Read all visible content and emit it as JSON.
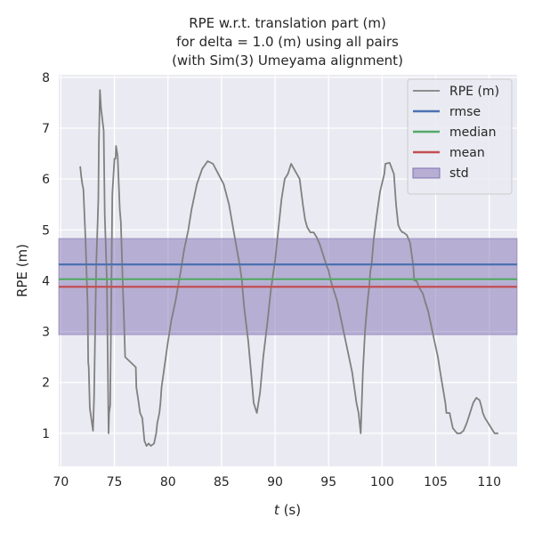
{
  "chart_data": {
    "type": "line",
    "title_lines": [
      "RPE w.r.t. translation part (m)",
      "for delta = 1.0 (m) using all pairs",
      "(with Sim(3) Umeyama alignment)"
    ],
    "xlabel_var": "t",
    "xlabel_unit": " (s)",
    "ylabel": "RPE (m)",
    "xlim": [
      69.8,
      112.6
    ],
    "ylim": [
      0.35,
      8.05
    ],
    "xticks": [
      70,
      75,
      80,
      85,
      90,
      95,
      100,
      105,
      110
    ],
    "yticks": [
      1,
      2,
      3,
      4,
      5,
      6,
      7,
      8
    ],
    "grid": true,
    "legend_position": "top-right",
    "series": [
      {
        "name": "RPE (m)",
        "kind": "line",
        "color": "#808080",
        "x": [
          71.8,
          71.9,
          72.0,
          72.1,
          72.3,
          72.5,
          72.55,
          72.6,
          72.7,
          73.0,
          73.1,
          73.3,
          73.45,
          73.5,
          73.55,
          73.65,
          73.75,
          74.0,
          74.1,
          74.3,
          74.45,
          74.5,
          74.6,
          74.8,
          75.0,
          75.1,
          75.15,
          75.3,
          75.5,
          75.6,
          75.8,
          75.9,
          76.0,
          77.0,
          77.05,
          77.2,
          77.4,
          77.6,
          77.8,
          78.0,
          78.2,
          78.4,
          78.7,
          78.9,
          79.0,
          79.2,
          79.3,
          79.4,
          79.6,
          79.8,
          80.0,
          80.3,
          80.7,
          81.2,
          81.5,
          81.9,
          82.2,
          82.7,
          83.2,
          83.7,
          84.2,
          84.7,
          85.2,
          85.7,
          86.2,
          86.7,
          86.9,
          87.1,
          87.5,
          87.8,
          88.0,
          88.3,
          88.6,
          88.9,
          89.3,
          89.6,
          90.0,
          90.3,
          90.6,
          90.9,
          91.2,
          91.5,
          91.9,
          92.3,
          92.6,
          92.8,
          93.0,
          93.3,
          93.6,
          93.9,
          94.2,
          94.5,
          94.8,
          95.0,
          95.2,
          95.5,
          95.8,
          96.0,
          96.3,
          96.6,
          96.9,
          97.2,
          97.4,
          97.6,
          97.8,
          98.0,
          98.2,
          98.4,
          98.6,
          98.8,
          98.9,
          99.0,
          99.2,
          99.5,
          99.8,
          100.2,
          100.3,
          100.7,
          101.1,
          101.3,
          101.5,
          101.7,
          101.9,
          102.0,
          102.1,
          102.3,
          102.6,
          102.9,
          103.0,
          103.2,
          103.5,
          103.8,
          104.0,
          104.3,
          104.6,
          104.9,
          105.2,
          105.5,
          105.7,
          105.9,
          106.0,
          106.3,
          106.5,
          106.6,
          107.0,
          107.3,
          107.6,
          107.9,
          108.2,
          108.5,
          108.8,
          109.1,
          109.3,
          109.4,
          109.6,
          109.9,
          110.2,
          110.5,
          110.8,
          110.85
        ],
        "y": [
          6.25,
          6.05,
          5.9,
          5.8,
          4.8,
          3.5,
          2.4,
          2.3,
          1.5,
          1.05,
          1.7,
          4.3,
          5.25,
          5.6,
          6.7,
          7.75,
          7.4,
          6.95,
          5.3,
          4.0,
          1.0,
          1.4,
          1.55,
          5.7,
          6.4,
          6.4,
          6.65,
          6.45,
          5.4,
          5.15,
          3.8,
          3.2,
          2.5,
          2.3,
          1.9,
          1.7,
          1.4,
          1.3,
          0.85,
          0.75,
          0.8,
          0.75,
          0.8,
          1.0,
          1.2,
          1.4,
          1.6,
          1.9,
          2.2,
          2.5,
          2.8,
          3.2,
          3.6,
          4.2,
          4.6,
          5.0,
          5.4,
          5.9,
          6.2,
          6.35,
          6.3,
          6.1,
          5.9,
          5.5,
          4.9,
          4.3,
          4.0,
          3.5,
          2.8,
          2.1,
          1.6,
          1.4,
          1.8,
          2.5,
          3.2,
          3.8,
          4.4,
          5.0,
          5.6,
          6.0,
          6.1,
          6.3,
          6.15,
          6.0,
          5.5,
          5.2,
          5.05,
          4.95,
          4.95,
          4.85,
          4.7,
          4.5,
          4.3,
          4.2,
          4.0,
          3.8,
          3.6,
          3.4,
          3.1,
          2.8,
          2.5,
          2.2,
          1.9,
          1.6,
          1.4,
          1.0,
          2.2,
          3.0,
          3.5,
          3.9,
          4.2,
          4.3,
          4.8,
          5.3,
          5.75,
          6.1,
          6.3,
          6.32,
          6.1,
          5.5,
          5.1,
          5.0,
          4.95,
          4.95,
          4.93,
          4.9,
          4.75,
          4.3,
          4.0,
          4.0,
          3.85,
          3.75,
          3.6,
          3.4,
          3.1,
          2.8,
          2.5,
          2.1,
          1.85,
          1.6,
          1.4,
          1.4,
          1.2,
          1.1,
          1.0,
          1.0,
          1.05,
          1.2,
          1.4,
          1.6,
          1.7,
          1.65,
          1.5,
          1.4,
          1.3,
          1.2,
          1.1,
          1.0,
          1.0,
          1.0
        ]
      },
      {
        "name": "rmse",
        "kind": "hline",
        "value": 4.32,
        "color": "#4c72b0"
      },
      {
        "name": "median",
        "kind": "hline",
        "value": 4.03,
        "color": "#55a868"
      },
      {
        "name": "mean",
        "kind": "hline",
        "value": 3.88,
        "color": "#c44e52"
      },
      {
        "name": "std",
        "kind": "band",
        "low": 2.94,
        "high": 4.83,
        "color": "#8172b3"
      }
    ]
  }
}
